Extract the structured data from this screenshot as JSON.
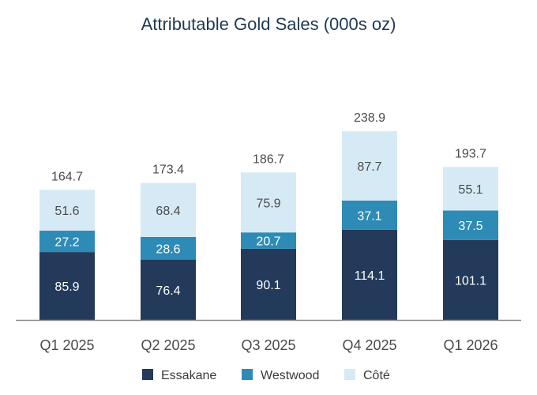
{
  "chart_data": {
    "type": "bar",
    "stacked": true,
    "title": "Attributable Gold Sales (000s oz)",
    "categories": [
      "Q1 2025",
      "Q2 2025",
      "Q3 2025",
      "Q4 2025",
      "Q1 2026"
    ],
    "totals": [
      "164.7",
      "173.4",
      "186.7",
      "238.9",
      "193.7"
    ],
    "series": [
      {
        "name": "Essakane",
        "color": "#233a5a",
        "label_color": "#ffffff",
        "values": [
          85.9,
          76.4,
          90.1,
          114.1,
          101.1
        ],
        "labels": [
          "85.9",
          "76.4",
          "90.1",
          "114.1",
          "101.1"
        ]
      },
      {
        "name": "Westwood",
        "color": "#2e8bb5",
        "label_color": "#ffffff",
        "values": [
          27.2,
          28.6,
          20.7,
          37.1,
          37.5
        ],
        "labels": [
          "27.2",
          "28.6",
          "20.7",
          "37.1",
          "37.5"
        ]
      },
      {
        "name": "Côté",
        "color": "#d6eaf5",
        "label_color": "#4a4a4a",
        "values": [
          51.6,
          68.4,
          75.9,
          87.7,
          55.1
        ],
        "labels": [
          "51.6",
          "68.4",
          "75.9",
          "87.7",
          "55.1"
        ]
      }
    ],
    "ylim": [
      0,
      250
    ],
    "grid": false,
    "legend": "bottom-center"
  }
}
